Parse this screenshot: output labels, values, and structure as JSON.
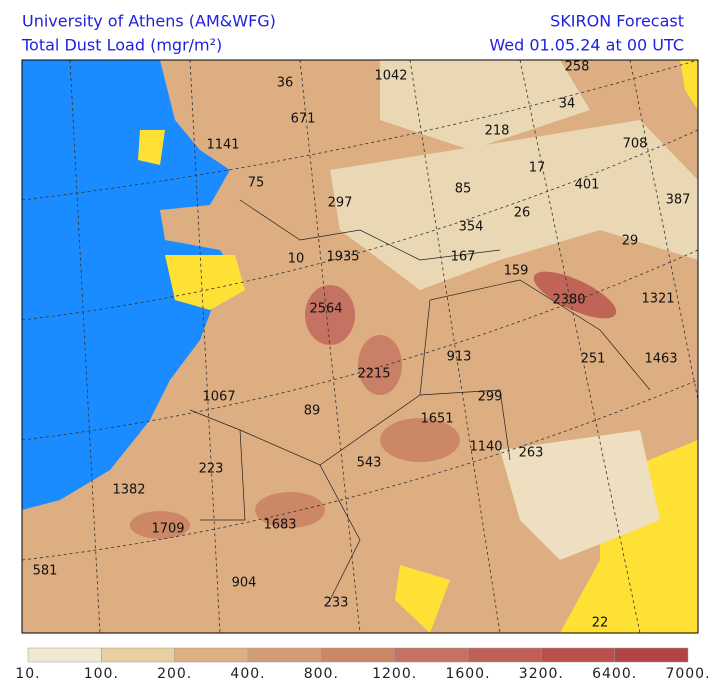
{
  "header": {
    "left": [
      "University of Athens (AM&WFG)",
      "Total Dust Load (mgr/m²)"
    ],
    "right": [
      "SKIRON Forecast",
      "Wed 01.05.24 at 00 UTC"
    ]
  },
  "map_labels": [
    "36",
    "1042",
    "258",
    "671",
    "34",
    "1141",
    "218",
    "708",
    "75",
    "17",
    "401",
    "85",
    "297",
    "26",
    "387",
    "354",
    "29",
    "10",
    "1935",
    "167",
    "159",
    "2380",
    "1321",
    "2564",
    "913",
    "251",
    "1463",
    "2215",
    "1067",
    "89",
    "299",
    "1651",
    "1140",
    "263",
    "543",
    "223",
    "1382",
    "1709",
    "1683",
    "581",
    "904",
    "233",
    "22"
  ],
  "colorbar": {
    "labels": [
      "10.",
      "100.",
      "200.",
      "400.",
      "800.",
      "1200.",
      "1600.",
      "3200.",
      "6400.",
      "7000."
    ],
    "colors": [
      "#f2e8d2",
      "#e8cfa0",
      "#ddb083",
      "#d49c74",
      "#cc8866",
      "#c57262",
      "#bf6058",
      "#b9504c",
      "#b04444"
    ]
  }
}
